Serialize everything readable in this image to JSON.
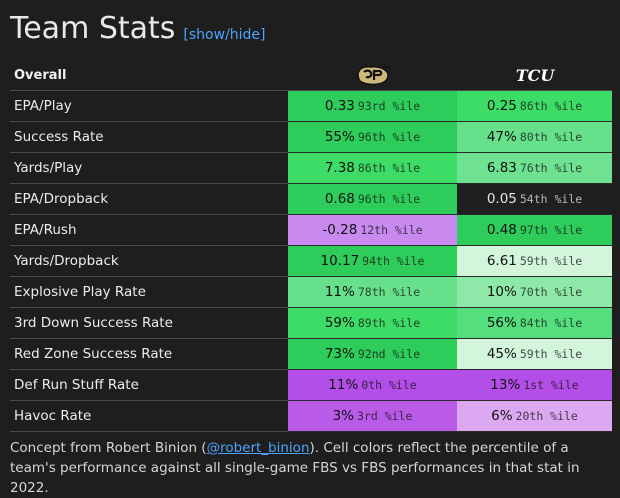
{
  "header": {
    "title": "Team Stats",
    "toggle_label": "[show/hide]"
  },
  "table": {
    "section_label": "Overall",
    "teams": [
      {
        "name": "Colorado",
        "logo_icon": "colorado-buffalo-logo-icon"
      },
      {
        "name": "TCU",
        "logo_text": "TCU",
        "logo_icon": "tcu-logo-icon"
      }
    ],
    "rows": [
      {
        "label": "EPA/Play",
        "team1": {
          "value": "0.33",
          "pct": "93rd %ile",
          "color": "#2ecc5a"
        },
        "team2": {
          "value": "0.25",
          "pct": "86th %ile",
          "color": "#3ddc66"
        }
      },
      {
        "label": "Success Rate",
        "team1": {
          "value": "55%",
          "pct": "96th %ile",
          "color": "#2ecc5a"
        },
        "team2": {
          "value": "47%",
          "pct": "80th %ile",
          "color": "#66e08a"
        }
      },
      {
        "label": "Yards/Play",
        "team1": {
          "value": "7.38",
          "pct": "86th %ile",
          "color": "#3ddc66"
        },
        "team2": {
          "value": "6.83",
          "pct": "76th %ile",
          "color": "#6fe292"
        }
      },
      {
        "label": "EPA/Dropback",
        "team1": {
          "value": "0.68",
          "pct": "96th %ile",
          "color": "#2ecc5a"
        },
        "team2": {
          "value": "0.05",
          "pct": "54th %ile",
          "color": "#1f1f1f"
        }
      },
      {
        "label": "EPA/Rush",
        "team1": {
          "value": "-0.28",
          "pct": "12th %ile",
          "color": "#c98af0"
        },
        "team2": {
          "value": "0.48",
          "pct": "97th %ile",
          "color": "#2ecc5a"
        }
      },
      {
        "label": "Yards/Dropback",
        "team1": {
          "value": "10.17",
          "pct": "94th %ile",
          "color": "#2ecc5a"
        },
        "team2": {
          "value": "6.61",
          "pct": "59th %ile",
          "color": "#d2f5dc"
        }
      },
      {
        "label": "Explosive Play Rate",
        "team1": {
          "value": "11%",
          "pct": "78th %ile",
          "color": "#66e08a"
        },
        "team2": {
          "value": "10%",
          "pct": "70th %ile",
          "color": "#8ee8a8"
        }
      },
      {
        "label": "3rd Down Success Rate",
        "team1": {
          "value": "59%",
          "pct": "89th %ile",
          "color": "#3ddc66"
        },
        "team2": {
          "value": "56%",
          "pct": "84th %ile",
          "color": "#55de7e"
        }
      },
      {
        "label": "Red Zone Success Rate",
        "team1": {
          "value": "73%",
          "pct": "92nd %ile",
          "color": "#2ecc5a"
        },
        "team2": {
          "value": "45%",
          "pct": "59th %ile",
          "color": "#d2f5dc"
        }
      },
      {
        "label": "Def Run Stuff Rate",
        "team1": {
          "value": "11%",
          "pct": "0th %ile",
          "color": "#b34ee8"
        },
        "team2": {
          "value": "13%",
          "pct": "1st %ile",
          "color": "#b34ee8"
        }
      },
      {
        "label": "Havoc Rate",
        "team1": {
          "value": "3%",
          "pct": "3rd %ile",
          "color": "#b95ae8"
        },
        "team2": {
          "value": "6%",
          "pct": "20th %ile",
          "color": "#dda8f2"
        }
      }
    ]
  },
  "footer": {
    "text_before": "Concept from Robert Binion (",
    "link_text": "@robert_binion",
    "text_after": "). Cell colors reflect the percentile of a team's performance against all single-game FBS vs FBS performances in that stat in 2022."
  }
}
